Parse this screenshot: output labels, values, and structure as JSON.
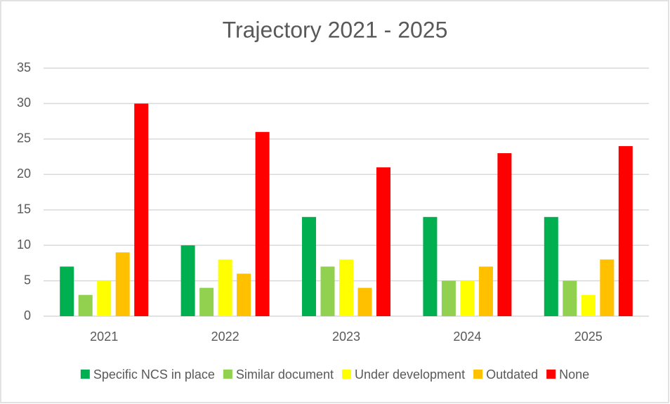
{
  "chart_data": {
    "type": "bar",
    "title": "Trajectory 2021 - 2025",
    "categories": [
      "2021",
      "2022",
      "2023",
      "2024",
      "2025"
    ],
    "series": [
      {
        "name": "Specific NCS in place",
        "color": "#00b050",
        "values": [
          7,
          10,
          14,
          14,
          14
        ]
      },
      {
        "name": "Similar document",
        "color": "#92d050",
        "values": [
          3,
          4,
          7,
          5,
          5
        ]
      },
      {
        "name": "Under development",
        "color": "#ffff00",
        "values": [
          5,
          8,
          8,
          5,
          3
        ]
      },
      {
        "name": "Outdated",
        "color": "#ffc000",
        "values": [
          9,
          6,
          4,
          7,
          8
        ]
      },
      {
        "name": "None",
        "color": "#ff0000",
        "values": [
          30,
          26,
          21,
          23,
          24
        ]
      }
    ],
    "ylim": [
      0,
      35
    ],
    "yticks": [
      0,
      5,
      10,
      15,
      20,
      25,
      30,
      35
    ],
    "grid": true,
    "legend": "bottom"
  }
}
